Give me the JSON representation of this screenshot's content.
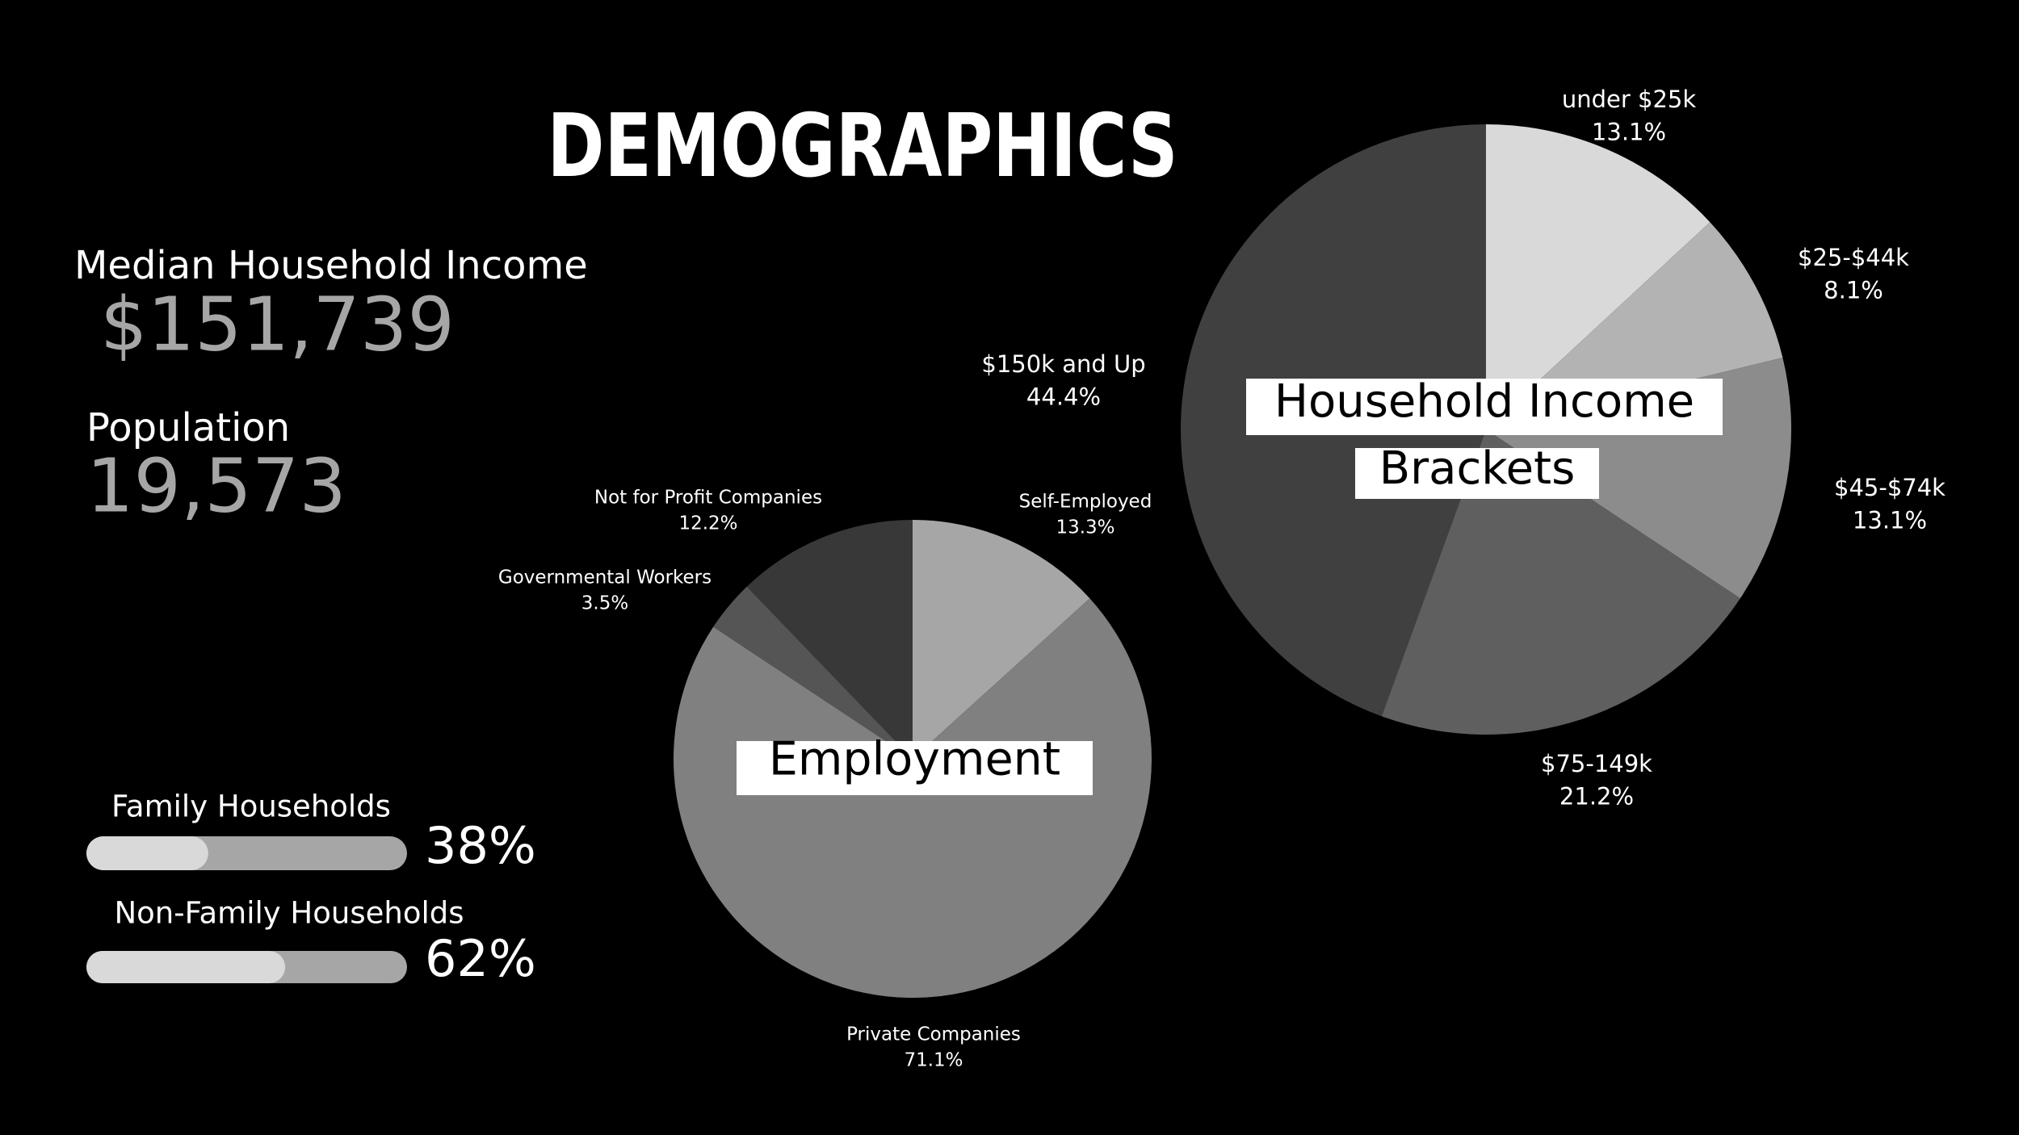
{
  "title": "DEMOGRAPHICS",
  "stats": [
    {
      "label": "Median Household Income",
      "value": "$151,739"
    },
    {
      "label": "Population",
      "value": "19,573"
    }
  ],
  "chart_data": [
    {
      "type": "pie",
      "title": "Employment",
      "categories": [
        "Self-Employed",
        "Private Companies",
        "Governmental Workers",
        "Not for Profit Companies"
      ],
      "values": [
        13.3,
        71.1,
        3.5,
        12.2
      ],
      "value_labels": [
        "13.3%",
        "71.1%",
        "3.5%",
        "12.2%"
      ],
      "colors": [
        "#a6a6a6",
        "#808080",
        "#555555",
        "#383838"
      ]
    },
    {
      "type": "pie",
      "title": "Household Income Brackets",
      "title_lines": [
        "Household Income",
        "Brackets"
      ],
      "categories": [
        "under $25k",
        "$25-$44k",
        "$45-$74k",
        "$75-149k",
        "$150k and Up"
      ],
      "values": [
        13.1,
        8.1,
        13.1,
        21.2,
        44.4
      ],
      "value_labels": [
        "13.1%",
        "8.1%",
        "13.1%",
        "21.2%",
        "44.4%"
      ],
      "colors": [
        "#d9d9d9",
        "#b3b3b3",
        "#8c8c8c",
        "#5f5f5f",
        "#404040"
      ]
    },
    {
      "type": "progress",
      "categories": [
        "Family Households",
        "Non-Family Households"
      ],
      "values": [
        38,
        62
      ],
      "value_labels": [
        "38%",
        "62%"
      ],
      "xlim": [
        0,
        100
      ],
      "color": "#d9d9d9",
      "track_color": "#a6a6a6"
    }
  ]
}
